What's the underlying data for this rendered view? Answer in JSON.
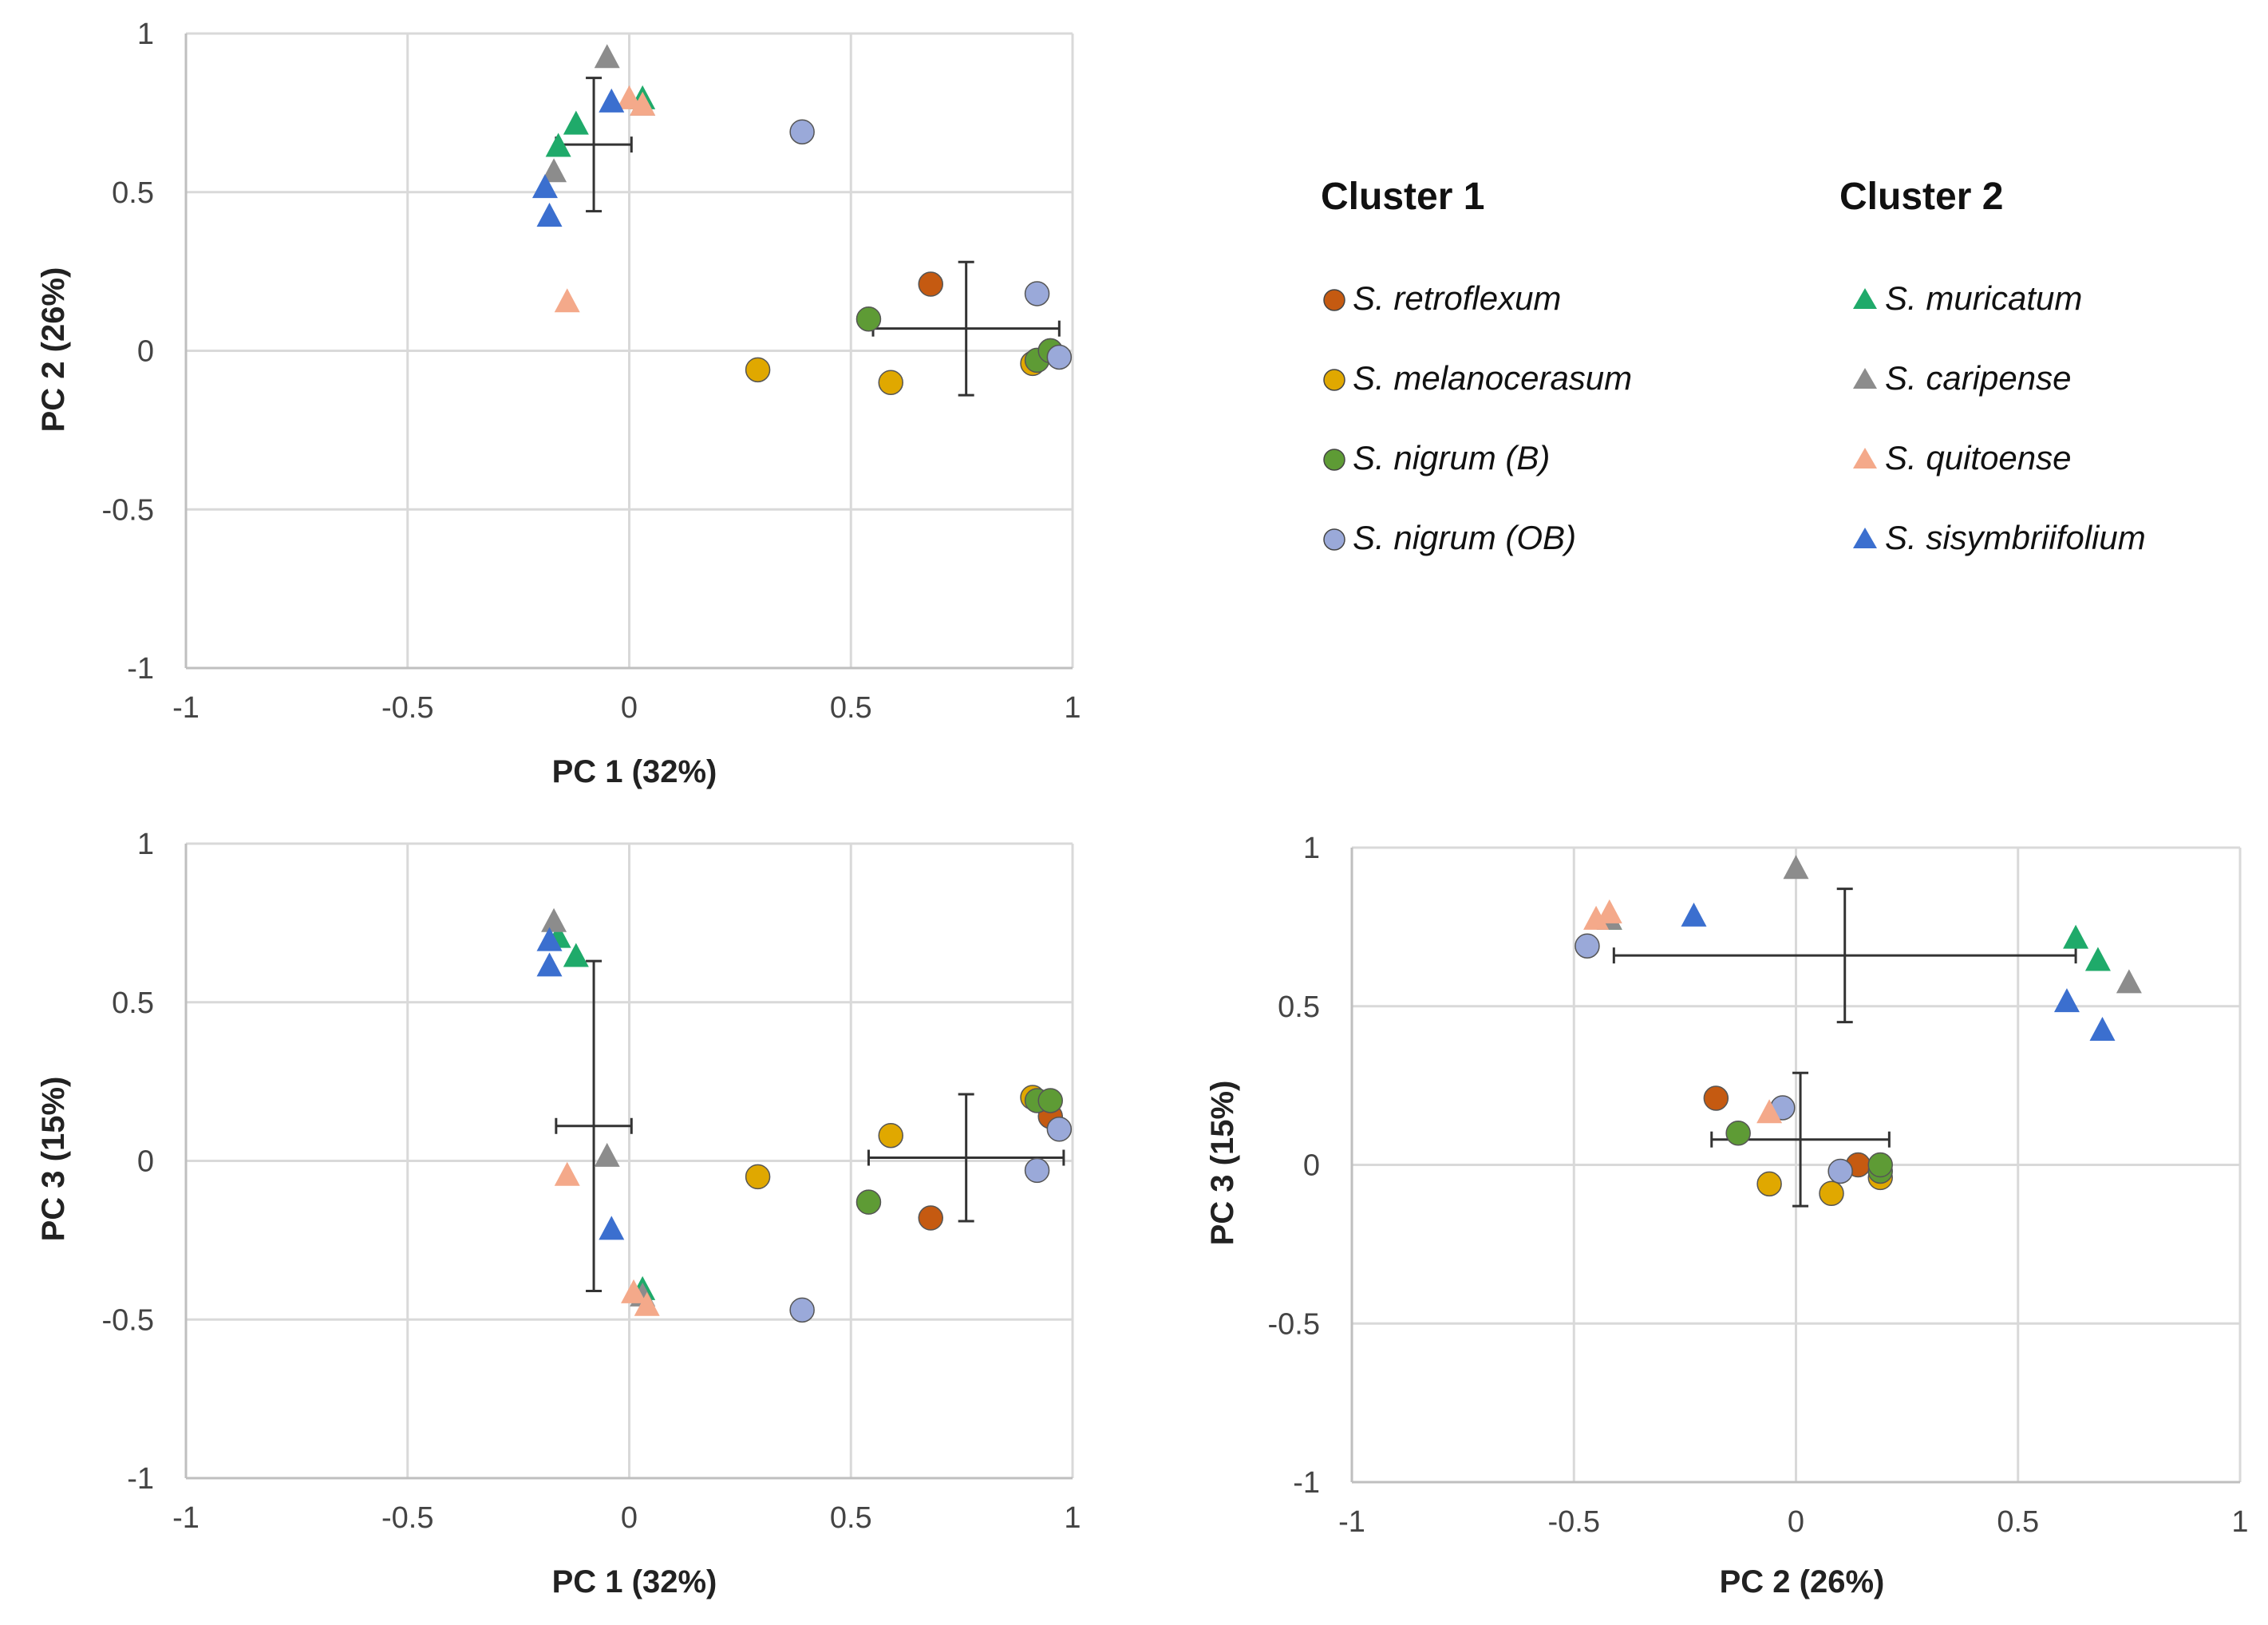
{
  "colors": {
    "S_retroflexum": "#c55a11",
    "S_melanocerasum": "#e0a800",
    "S_nigrum_B": "#5e9b35",
    "S_nigrum_OB": "#9aa9d9",
    "S_muricatum": "#1faa6a",
    "S_caripense": "#8c8c8c",
    "S_quitoense": "#f4a98a",
    "S_sisymbriifolium": "#3b6fcf",
    "grid": "#d9d9d9",
    "axis": "#bfbfbf",
    "errorbar": "#333333"
  },
  "legend": {
    "cluster1_title": "Cluster 1",
    "cluster2_title": "Cluster 2",
    "cluster1": [
      {
        "key": "S_retroflexum",
        "label": "S. retroflexum",
        "marker": "circle"
      },
      {
        "key": "S_melanocerasum",
        "label": "S. melanocerasum",
        "marker": "circle"
      },
      {
        "key": "S_nigrum_B",
        "label": "S. nigrum (B)",
        "marker": "circle"
      },
      {
        "key": "S_nigrum_OB",
        "label": "S. nigrum (OB)",
        "marker": "circle"
      }
    ],
    "cluster2": [
      {
        "key": "S_muricatum",
        "label": "S. muricatum",
        "marker": "triangle"
      },
      {
        "key": "S_caripense",
        "label": "S. caripense",
        "marker": "triangle"
      },
      {
        "key": "S_quitoense",
        "label": "S. quitoense",
        "marker": "triangle"
      },
      {
        "key": "S_sisymbriifolium",
        "label": "S. sisymbriifolium",
        "marker": "triangle"
      }
    ]
  },
  "chart_data": [
    {
      "type": "scatter",
      "id": "pc1-pc2",
      "xlabel": "PC 1 (32%)",
      "ylabel": "PC 2 (26%)",
      "xlim": [
        -1,
        1
      ],
      "ylim": [
        -1,
        1
      ],
      "xticks": [
        "-1",
        "-0.5",
        "0",
        "0.5",
        "1"
      ],
      "yticks": [
        "1",
        "0.5",
        "0",
        "-0.5",
        "-1"
      ],
      "grid": true,
      "series": [
        {
          "key": "S_retroflexum",
          "marker": "circle",
          "points": [
            [
              0.68,
              0.21
            ],
            [
              0.95,
              0.0
            ]
          ]
        },
        {
          "key": "S_melanocerasum",
          "marker": "circle",
          "points": [
            [
              0.29,
              -0.06
            ],
            [
              0.59,
              -0.1
            ],
            [
              0.91,
              -0.04
            ]
          ]
        },
        {
          "key": "S_nigrum_B",
          "marker": "circle",
          "points": [
            [
              0.54,
              0.1
            ],
            [
              0.92,
              -0.03
            ],
            [
              0.95,
              0.0
            ]
          ]
        },
        {
          "key": "S_nigrum_OB",
          "marker": "circle",
          "points": [
            [
              0.39,
              0.69
            ],
            [
              0.92,
              0.18
            ],
            [
              0.97,
              -0.02
            ]
          ]
        },
        {
          "key": "S_muricatum",
          "marker": "triangle",
          "points": [
            [
              -0.12,
              0.71
            ],
            [
              -0.16,
              0.64
            ],
            [
              0.03,
              0.79
            ]
          ]
        },
        {
          "key": "S_caripense",
          "marker": "triangle",
          "points": [
            [
              -0.05,
              0.92
            ],
            [
              -0.17,
              0.56
            ],
            [
              0.03,
              0.77
            ]
          ]
        },
        {
          "key": "S_quitoense",
          "marker": "triangle",
          "points": [
            [
              -0.14,
              0.15
            ],
            [
              0.0,
              0.79
            ],
            [
              0.03,
              0.77
            ]
          ]
        },
        {
          "key": "S_sisymbriifolium",
          "marker": "triangle",
          "points": [
            [
              -0.04,
              0.78
            ],
            [
              -0.19,
              0.51
            ],
            [
              -0.18,
              0.42
            ]
          ]
        }
      ],
      "error_bars": [
        {
          "center": [
            -0.08,
            0.65
          ],
          "x_err": 0.085,
          "y_err": 0.21
        },
        {
          "center": [
            0.76,
            0.07
          ],
          "x_err": 0.21,
          "y_err": 0.21
        }
      ]
    },
    {
      "type": "scatter",
      "id": "pc1-pc3",
      "xlabel": "PC 1 (32%)",
      "ylabel": "PC 3 (15%)",
      "xlim": [
        -1,
        1
      ],
      "ylim": [
        -1,
        1
      ],
      "xticks": [
        "-1",
        "-0.5",
        "0",
        "0.5",
        "1"
      ],
      "yticks": [
        "1",
        "0.5",
        "0",
        "-0.5",
        "-1"
      ],
      "grid": true,
      "series": [
        {
          "key": "S_retroflexum",
          "marker": "circle",
          "points": [
            [
              0.68,
              -0.18
            ],
            [
              0.95,
              0.14
            ]
          ]
        },
        {
          "key": "S_melanocerasum",
          "marker": "circle",
          "points": [
            [
              0.29,
              -0.05
            ],
            [
              0.59,
              0.08
            ],
            [
              0.91,
              0.2
            ]
          ]
        },
        {
          "key": "S_nigrum_B",
          "marker": "circle",
          "points": [
            [
              0.54,
              -0.13
            ],
            [
              0.92,
              0.19
            ],
            [
              0.95,
              0.19
            ]
          ]
        },
        {
          "key": "S_nigrum_OB",
          "marker": "circle",
          "points": [
            [
              0.39,
              -0.47
            ],
            [
              0.92,
              -0.03
            ],
            [
              0.97,
              0.1
            ]
          ]
        },
        {
          "key": "S_muricatum",
          "marker": "triangle",
          "points": [
            [
              -0.12,
              0.64
            ],
            [
              -0.16,
              0.7
            ],
            [
              0.03,
              -0.41
            ]
          ]
        },
        {
          "key": "S_caripense",
          "marker": "triangle",
          "points": [
            [
              -0.17,
              0.75
            ],
            [
              -0.05,
              0.01
            ],
            [
              0.03,
              -0.43
            ]
          ]
        },
        {
          "key": "S_quitoense",
          "marker": "triangle",
          "points": [
            [
              -0.14,
              -0.05
            ],
            [
              0.01,
              -0.42
            ],
            [
              0.04,
              -0.46
            ]
          ]
        },
        {
          "key": "S_sisymbriifolium",
          "marker": "triangle",
          "points": [
            [
              -0.18,
              0.61
            ],
            [
              -0.18,
              0.69
            ],
            [
              -0.04,
              -0.22
            ]
          ]
        }
      ],
      "error_bars": [
        {
          "center": [
            -0.08,
            0.11
          ],
          "x_err": 0.085,
          "y_err": 0.52
        },
        {
          "center": [
            0.76,
            0.01
          ],
          "x_err": 0.22,
          "y_err": 0.2
        }
      ]
    },
    {
      "type": "scatter",
      "id": "pc2-pc3",
      "xlabel": "PC 2 (26%)",
      "ylabel": "PC 3 (15%)",
      "xlim": [
        -1,
        1
      ],
      "ylim": [
        -1,
        1
      ],
      "xticks": [
        "-1",
        "-0.5",
        "0",
        "0.5",
        "1"
      ],
      "yticks": [
        "1",
        "0.5",
        "0",
        "-0.5",
        "-1"
      ],
      "grid": true,
      "series": [
        {
          "key": "S_retroflexum",
          "marker": "circle",
          "points": [
            [
              -0.18,
              0.21
            ],
            [
              0.14,
              0.0
            ]
          ]
        },
        {
          "key": "S_melanocerasum",
          "marker": "circle",
          "points": [
            [
              -0.06,
              -0.06
            ],
            [
              0.08,
              -0.09
            ],
            [
              0.19,
              -0.04
            ]
          ]
        },
        {
          "key": "S_nigrum_B",
          "marker": "circle",
          "points": [
            [
              -0.13,
              0.1
            ],
            [
              0.19,
              -0.02
            ],
            [
              0.19,
              0.0
            ]
          ]
        },
        {
          "key": "S_nigrum_OB",
          "marker": "circle",
          "points": [
            [
              -0.47,
              0.69
            ],
            [
              -0.03,
              0.18
            ],
            [
              0.1,
              -0.02
            ]
          ]
        },
        {
          "key": "S_muricatum",
          "marker": "triangle",
          "points": [
            [
              0.63,
              0.71
            ],
            [
              0.68,
              0.64
            ],
            [
              -0.42,
              0.77
            ]
          ]
        },
        {
          "key": "S_caripense",
          "marker": "triangle",
          "points": [
            [
              0.0,
              0.93
            ],
            [
              0.75,
              0.57
            ],
            [
              -0.42,
              0.77
            ]
          ]
        },
        {
          "key": "S_quitoense",
          "marker": "triangle",
          "points": [
            [
              -0.06,
              0.16
            ],
            [
              -0.45,
              0.77
            ],
            [
              -0.42,
              0.79
            ]
          ]
        },
        {
          "key": "S_sisymbriifolium",
          "marker": "triangle",
          "points": [
            [
              -0.23,
              0.78
            ],
            [
              0.61,
              0.51
            ],
            [
              0.69,
              0.42
            ]
          ]
        }
      ],
      "error_bars": [
        {
          "center": [
            0.11,
            0.66
          ],
          "x_err": 0.52,
          "y_err": 0.21
        },
        {
          "center": [
            0.01,
            0.08
          ],
          "x_err": 0.2,
          "y_err": 0.21
        }
      ]
    }
  ]
}
